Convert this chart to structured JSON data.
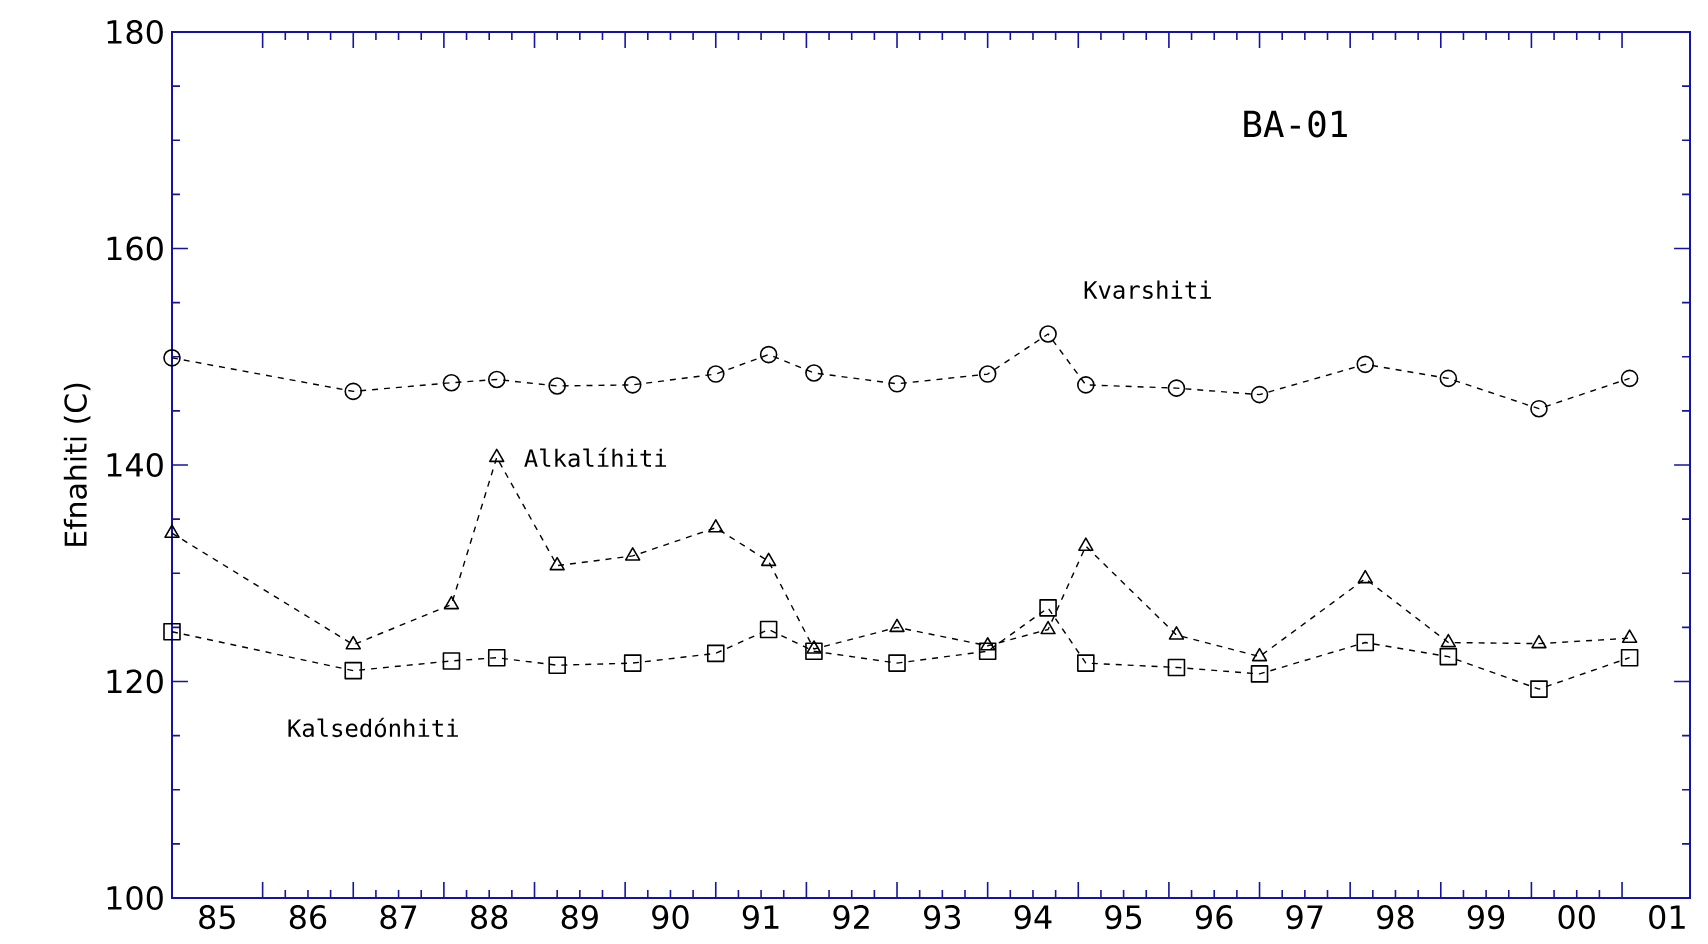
{
  "chart_data": {
    "type": "line",
    "title": "BA-01",
    "ylabel": "Efnahiti (C)",
    "xlim": [
      "1985",
      "2001-10"
    ],
    "ylim": [
      100,
      180
    ],
    "yticks": [
      100,
      120,
      140,
      160,
      180
    ],
    "xticks": [
      {
        "value": "1985-07",
        "label": "85"
      },
      {
        "value": "1986-07",
        "label": "86"
      },
      {
        "value": "1987-07",
        "label": "87"
      },
      {
        "value": "1988-07",
        "label": "88"
      },
      {
        "value": "1989-07",
        "label": "89"
      },
      {
        "value": "1990-07",
        "label": "90"
      },
      {
        "value": "1991-07",
        "label": "91"
      },
      {
        "value": "1992-07",
        "label": "92"
      },
      {
        "value": "1993-07",
        "label": "93"
      },
      {
        "value": "1994-07",
        "label": "94"
      },
      {
        "value": "1995-07",
        "label": "95"
      },
      {
        "value": "1996-07",
        "label": "96"
      },
      {
        "value": "1997-07",
        "label": "97"
      },
      {
        "value": "1998-07",
        "label": "98"
      },
      {
        "value": "1999-07",
        "label": "99"
      },
      {
        "value": "2000-07",
        "label": "00"
      },
      {
        "value": "2001-07",
        "label": "01"
      },
      {
        "value": "1986",
        "label": null
      },
      {
        "value": "1987",
        "label": null
      },
      {
        "value": "1988",
        "label": null
      },
      {
        "value": "1989",
        "label": null
      },
      {
        "value": "1990",
        "label": null
      },
      {
        "value": "1991",
        "label": null
      },
      {
        "value": "1992",
        "label": null
      },
      {
        "value": "1993",
        "label": null
      },
      {
        "value": "1994",
        "label": null
      },
      {
        "value": "1995",
        "label": null
      },
      {
        "value": "1996",
        "label": null
      },
      {
        "value": "1997",
        "label": null
      },
      {
        "value": "1998",
        "label": null
      },
      {
        "value": "1999",
        "label": null
      },
      {
        "value": "2000",
        "label": null
      },
      {
        "value": "2001",
        "label": null
      }
    ],
    "x": [
      "1985-01",
      "1987-01",
      "1988-02",
      "1988-08",
      "1989-04",
      "1990-02",
      "1991-01",
      "1991-08",
      "1992-02",
      "1993-01",
      "1994-01",
      "1994-09",
      "1995-02",
      "1996-02",
      "1997-01",
      "1998-03",
      "1999-02",
      "2000-02",
      "2001-02"
    ],
    "grid": false,
    "line_style": "dashed",
    "series": [
      {
        "name": "Kvarshiti",
        "color": "#000000",
        "marker": "circle",
        "values": [
          149.9,
          146.8,
          147.6,
          147.9,
          147.3,
          147.4,
          148.4,
          150.2,
          148.5,
          147.5,
          148.4,
          152.1,
          147.4,
          147.1,
          146.5,
          149.3,
          148.0,
          145.2,
          148.0
        ]
      },
      {
        "name": "Alkalíhiti",
        "color": "#000000",
        "marker": "triangle",
        "values": [
          133.7,
          123.4,
          127.1,
          140.7,
          130.7,
          131.6,
          134.2,
          131.1,
          123.0,
          125.0,
          123.3,
          124.8,
          132.5,
          124.3,
          122.3,
          129.5,
          123.6,
          123.5,
          124.0
        ]
      },
      {
        "name": "Kalsedónhiti",
        "color": "#000000",
        "marker": "square",
        "values": [
          124.6,
          121.0,
          121.9,
          122.2,
          121.5,
          121.7,
          122.6,
          124.8,
          122.8,
          121.7,
          122.8,
          126.8,
          121.7,
          121.3,
          120.7,
          123.6,
          122.3,
          119.3,
          122.2
        ]
      }
    ]
  }
}
